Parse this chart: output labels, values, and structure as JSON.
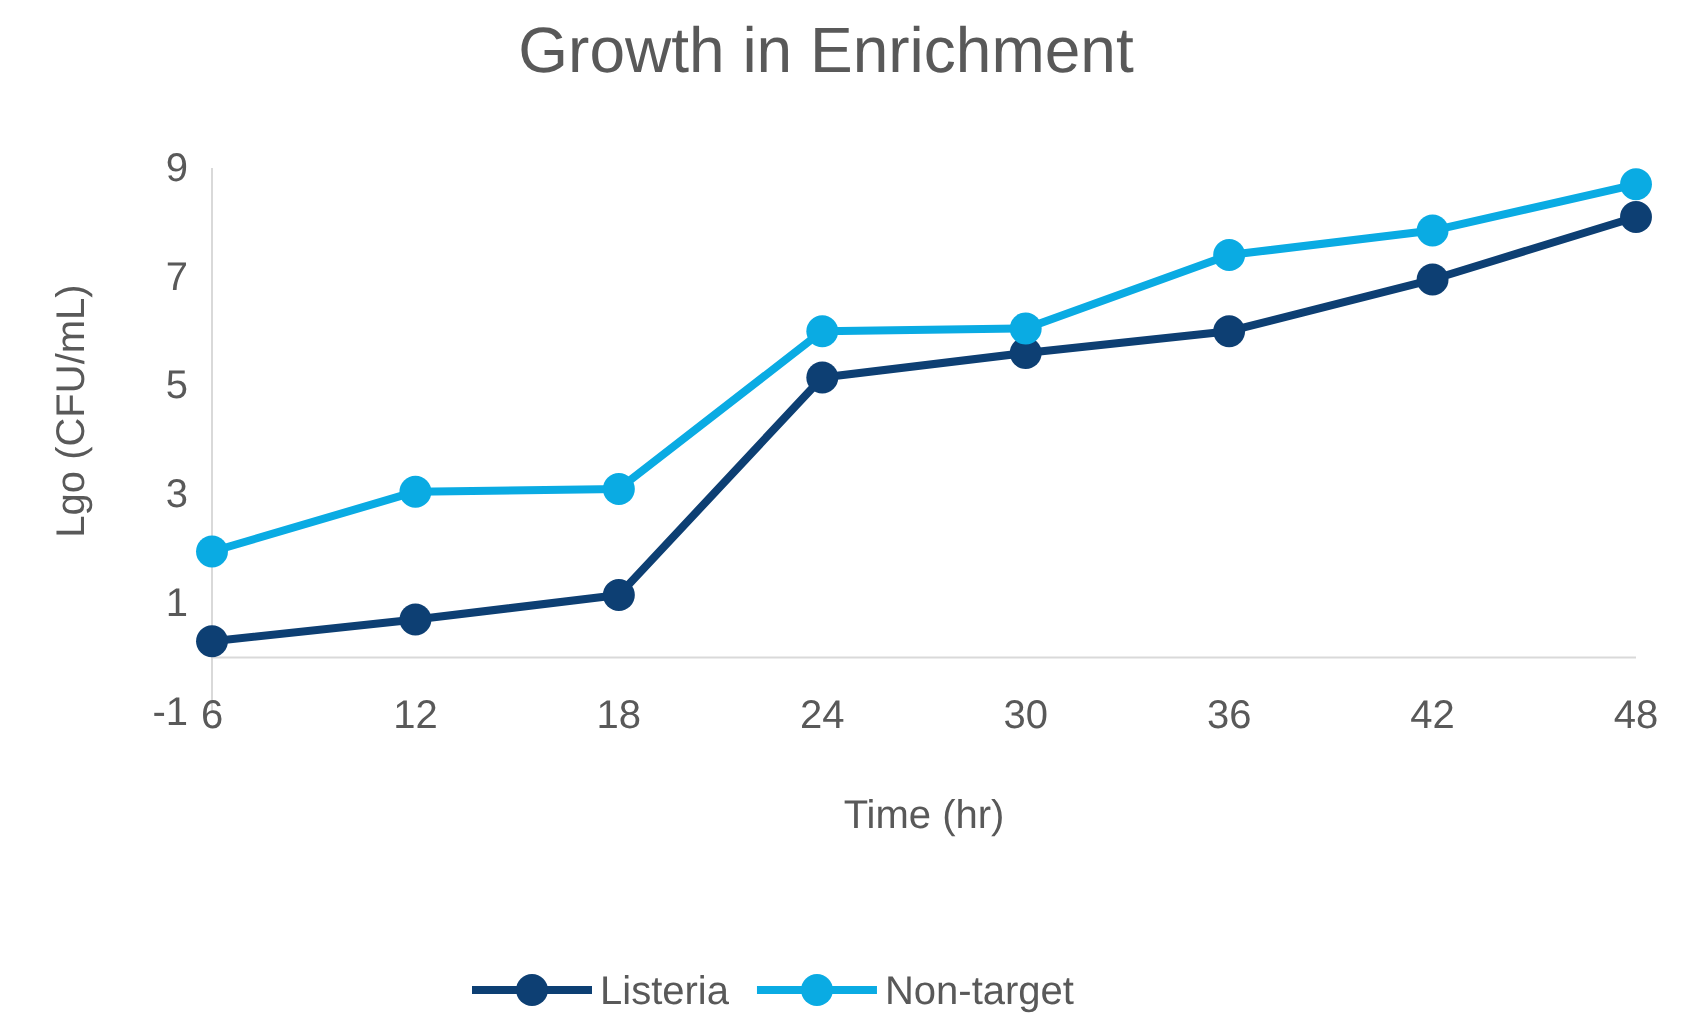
{
  "chart_data": {
    "type": "line",
    "title": "Growth in Enrichment",
    "xlabel": "Time (hr)",
    "ylabel": "Lgo (CFU/mL)",
    "x": [
      6,
      12,
      18,
      24,
      30,
      36,
      42,
      48
    ],
    "series": [
      {
        "name": "Listeria",
        "color": "#0d3f73",
        "values": [
          0.3,
          0.7,
          1.15,
          5.15,
          5.6,
          6.0,
          6.95,
          8.1
        ]
      },
      {
        "name": "Non-target",
        "color": "#0aabe3",
        "values": [
          1.95,
          3.05,
          3.1,
          6.0,
          6.05,
          7.4,
          7.85,
          8.7
        ]
      }
    ],
    "xlim": [
      6,
      48
    ],
    "xticks": [
      6,
      12,
      18,
      24,
      30,
      36,
      42,
      48
    ],
    "ylim": [
      -1,
      9
    ],
    "yticks": [
      -1,
      1,
      3,
      5,
      7,
      9
    ],
    "grid": false,
    "legend": "bottom",
    "marker": "circle",
    "line_style": "solid"
  }
}
